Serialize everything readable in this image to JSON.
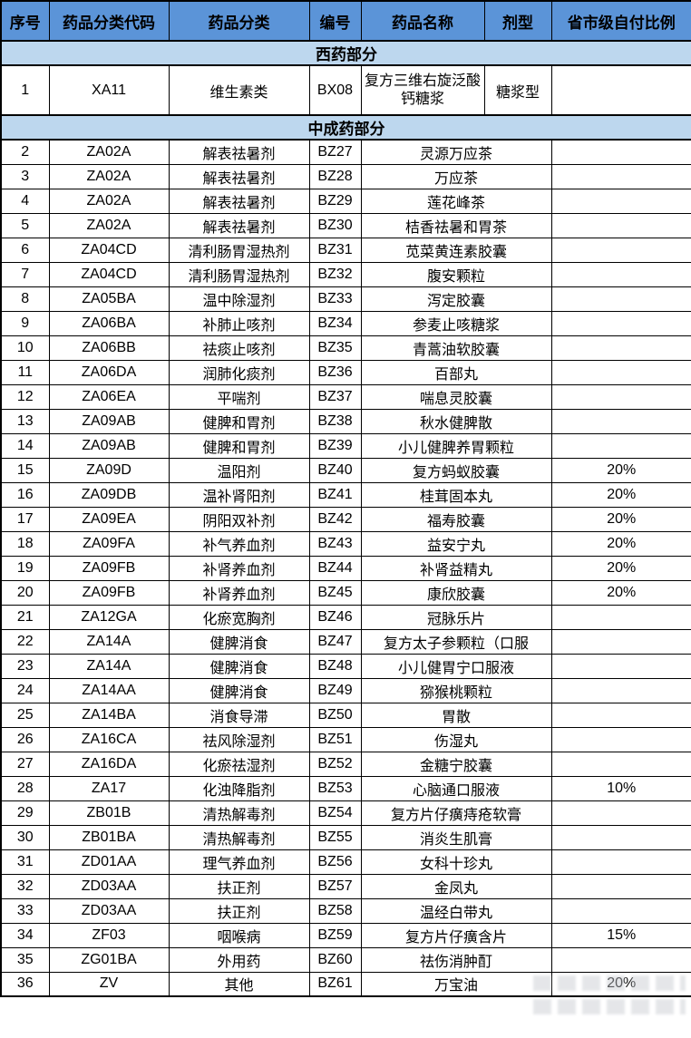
{
  "colors": {
    "header_bg": "#5b94d8",
    "section_bg": "#bdd7ee",
    "border": "#000000",
    "text": "#000000"
  },
  "header": {
    "columns": [
      "序号",
      "药品分类代码",
      "药品分类",
      "编号",
      "药品名称",
      "剂型",
      "省市级自付比例"
    ]
  },
  "sections": [
    {
      "title": "西药部分",
      "rows": [
        {
          "no": "1",
          "class_code": "XA11",
          "category": "维生素类",
          "code": "BX08",
          "name": "复方三维右旋泛酸钙糖浆",
          "form": "糖浆型",
          "ratio": ""
        }
      ]
    },
    {
      "title": "中成药部分",
      "rows": [
        {
          "no": "2",
          "class_code": "ZA02A",
          "category": "解表祛暑剂",
          "code": "BZ27",
          "name": "灵源万应茶",
          "ratio": ""
        },
        {
          "no": "3",
          "class_code": "ZA02A",
          "category": "解表祛暑剂",
          "code": "BZ28",
          "name": "万应茶",
          "ratio": ""
        },
        {
          "no": "4",
          "class_code": "ZA02A",
          "category": "解表祛暑剂",
          "code": "BZ29",
          "name": "莲花峰茶",
          "ratio": ""
        },
        {
          "no": "5",
          "class_code": "ZA02A",
          "category": "解表祛暑剂",
          "code": "BZ30",
          "name": "桔香祛暑和胃茶",
          "ratio": ""
        },
        {
          "no": "6",
          "class_code": "ZA04CD",
          "category": "清利肠胃湿热剂",
          "code": "BZ31",
          "name": "苋菜黄连素胶囊",
          "ratio": ""
        },
        {
          "no": "7",
          "class_code": "ZA04CD",
          "category": "清利肠胃湿热剂",
          "code": "BZ32",
          "name": "腹安颗粒",
          "ratio": ""
        },
        {
          "no": "8",
          "class_code": "ZA05BA",
          "category": "温中除湿剂",
          "code": "BZ33",
          "name": "泻定胶囊",
          "ratio": ""
        },
        {
          "no": "9",
          "class_code": "ZA06BA",
          "category": "补肺止咳剂",
          "code": "BZ34",
          "name": "参麦止咳糖浆",
          "ratio": ""
        },
        {
          "no": "10",
          "class_code": "ZA06BB",
          "category": "祛痰止咳剂",
          "code": "BZ35",
          "name": "青蒿油软胶囊",
          "ratio": ""
        },
        {
          "no": "11",
          "class_code": "ZA06DA",
          "category": "润肺化痰剂",
          "code": "BZ36",
          "name": "百部丸",
          "ratio": ""
        },
        {
          "no": "12",
          "class_code": "ZA06EA",
          "category": "平喘剂",
          "code": "BZ37",
          "name": "喘息灵胶囊",
          "ratio": ""
        },
        {
          "no": "13",
          "class_code": "ZA09AB",
          "category": "健脾和胃剂",
          "code": "BZ38",
          "name": "秋水健脾散",
          "ratio": ""
        },
        {
          "no": "14",
          "class_code": "ZA09AB",
          "category": "健脾和胃剂",
          "code": "BZ39",
          "name": "小儿健脾养胃颗粒",
          "ratio": ""
        },
        {
          "no": "15",
          "class_code": "ZA09D",
          "category": "温阳剂",
          "code": "BZ40",
          "name": "复方蚂蚁胶囊",
          "ratio": "20%"
        },
        {
          "no": "16",
          "class_code": "ZA09DB",
          "category": "温补肾阳剂",
          "code": "BZ41",
          "name": "桂茸固本丸",
          "ratio": "20%"
        },
        {
          "no": "17",
          "class_code": "ZA09EA",
          "category": "阴阳双补剂",
          "code": "BZ42",
          "name": "福寿胶囊",
          "ratio": "20%"
        },
        {
          "no": "18",
          "class_code": "ZA09FA",
          "category": "补气养血剂",
          "code": "BZ43",
          "name": "益安宁丸",
          "ratio": "20%"
        },
        {
          "no": "19",
          "class_code": "ZA09FB",
          "category": "补肾养血剂",
          "code": "BZ44",
          "name": "补肾益精丸",
          "ratio": "20%"
        },
        {
          "no": "20",
          "class_code": "ZA09FB",
          "category": "补肾养血剂",
          "code": "BZ45",
          "name": "康欣胶囊",
          "ratio": "20%"
        },
        {
          "no": "21",
          "class_code": "ZA12GA",
          "category": "化瘀宽胸剂",
          "code": "BZ46",
          "name": "冠脉乐片",
          "ratio": ""
        },
        {
          "no": "22",
          "class_code": "ZA14A",
          "category": "健脾消食",
          "code": "BZ47",
          "name": "复方太子参颗粒（口服",
          "ratio": ""
        },
        {
          "no": "23",
          "class_code": "ZA14A",
          "category": "健脾消食",
          "code": "BZ48",
          "name": "小儿健胃宁口服液",
          "ratio": ""
        },
        {
          "no": "24",
          "class_code": "ZA14AA",
          "category": "健脾消食",
          "code": "BZ49",
          "name": "猕猴桃颗粒",
          "ratio": ""
        },
        {
          "no": "25",
          "class_code": "ZA14BA",
          "category": "消食导滞",
          "code": "BZ50",
          "name": "胃散",
          "ratio": ""
        },
        {
          "no": "26",
          "class_code": "ZA16CA",
          "category": "祛风除湿剂",
          "code": "BZ51",
          "name": "伤湿丸",
          "ratio": ""
        },
        {
          "no": "27",
          "class_code": "ZA16DA",
          "category": "化瘀祛湿剂",
          "code": "BZ52",
          "name": "金糖宁胶囊",
          "ratio": ""
        },
        {
          "no": "28",
          "class_code": "ZA17",
          "category": "化浊降脂剂",
          "code": "BZ53",
          "name": "心脑通口服液",
          "ratio": "10%"
        },
        {
          "no": "29",
          "class_code": "ZB01B",
          "category": "清热解毒剂",
          "code": "BZ54",
          "name": "复方片仔癀痔疮软膏",
          "ratio": ""
        },
        {
          "no": "30",
          "class_code": "ZB01BA",
          "category": "清热解毒剂",
          "code": "BZ55",
          "name": "消炎生肌膏",
          "ratio": ""
        },
        {
          "no": "31",
          "class_code": "ZD01AA",
          "category": "理气养血剂",
          "code": "BZ56",
          "name": "女科十珍丸",
          "ratio": ""
        },
        {
          "no": "32",
          "class_code": "ZD03AA",
          "category": "扶正剂",
          "code": "BZ57",
          "name": "金凤丸",
          "ratio": ""
        },
        {
          "no": "33",
          "class_code": "ZD03AA",
          "category": "扶正剂",
          "code": "BZ58",
          "name": "温经白带丸",
          "ratio": ""
        },
        {
          "no": "34",
          "class_code": "ZF03",
          "category": "咽喉病",
          "code": "BZ59",
          "name": "复方片仔癀含片",
          "ratio": "15%"
        },
        {
          "no": "35",
          "class_code": "ZG01BA",
          "category": "外用药",
          "code": "BZ60",
          "name": "祛伤消肿酊",
          "ratio": ""
        },
        {
          "no": "36",
          "class_code": "ZV",
          "category": "其他",
          "code": "BZ61",
          "name": "万宝油",
          "ratio": "20%"
        }
      ]
    }
  ]
}
